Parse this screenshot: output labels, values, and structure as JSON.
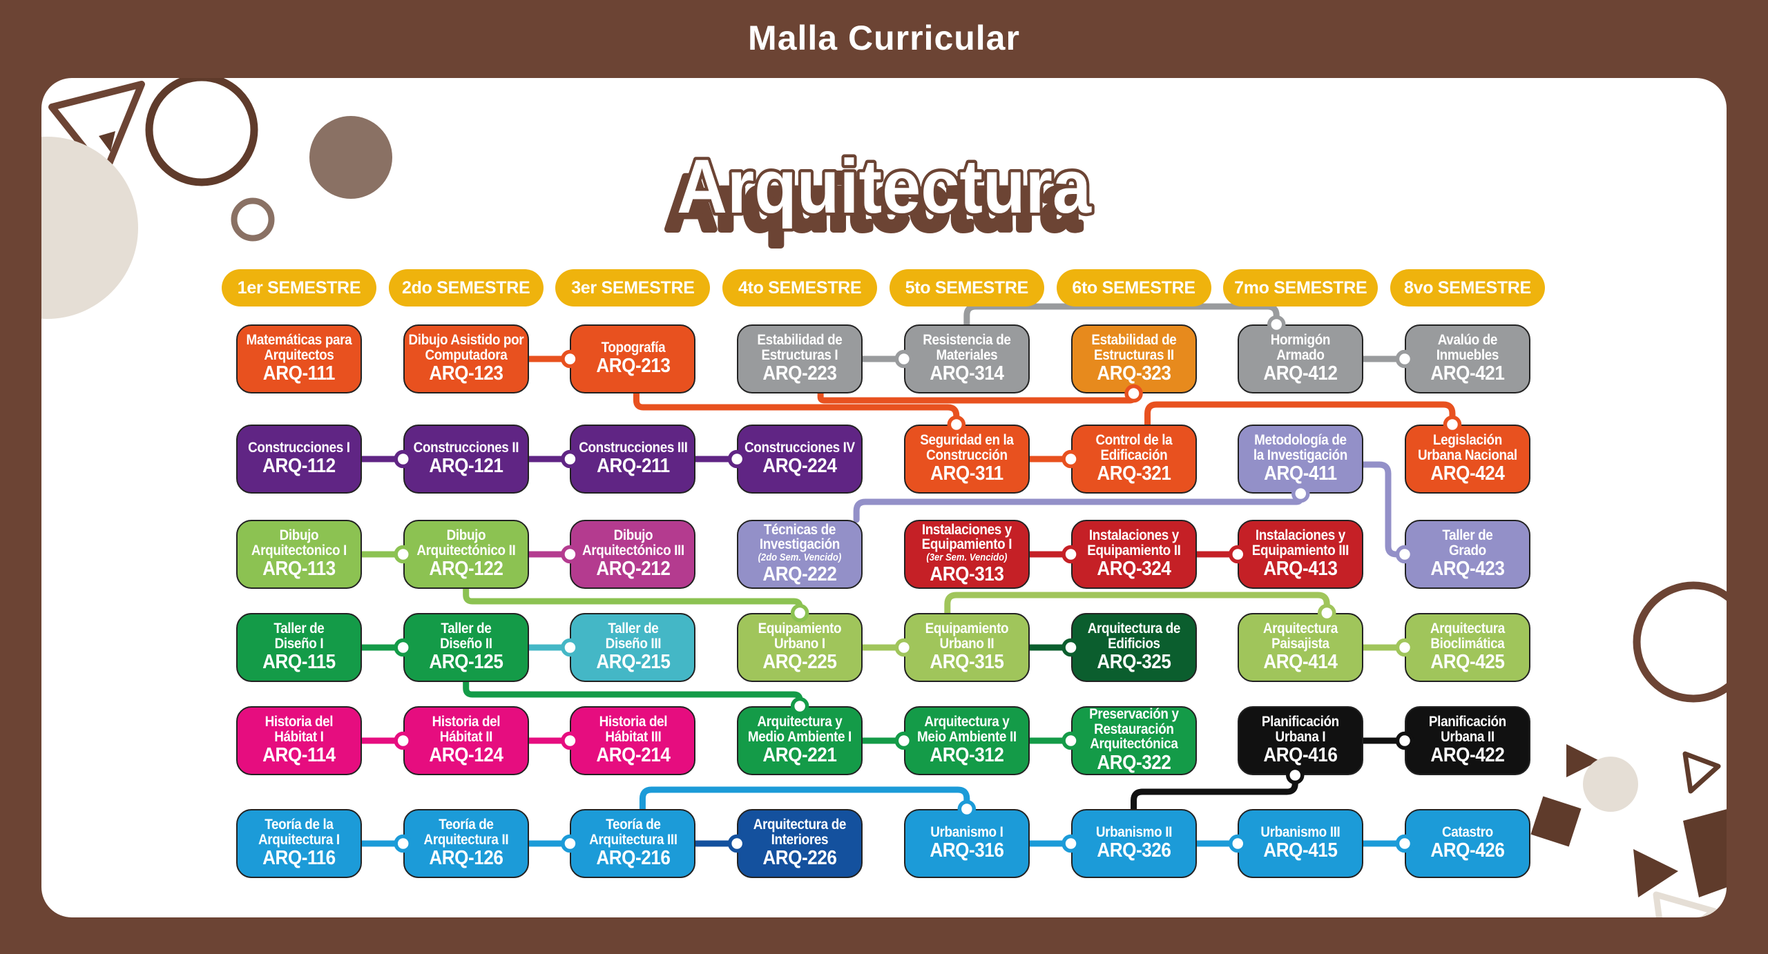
{
  "header": {
    "title": "Malla Curricular"
  },
  "program": {
    "title": "Arquitectura"
  },
  "palette": {
    "background": "#6C4434",
    "panel": "#FFFFFF",
    "pill": "#EFB30D",
    "orange": "#E8511F",
    "amber": "#E78A1D",
    "gray": "#999B9D",
    "purple": "#602584",
    "lavender": "#9390C8",
    "lightgreen": "#8CC252",
    "limegreen": "#A0C55B",
    "magenta": "#B43B8F",
    "red": "#C52026",
    "green": "#149B48",
    "teal": "#44B7C6",
    "darkgreen": "#0B5E2E",
    "pink": "#E60D7F",
    "black": "#111111",
    "blue": "#1C9BD8",
    "darkblue": "#14519E",
    "deco_brown": "#8A7164",
    "deco_dark": "#5F3B2B",
    "deco_beige": "#E5DED5",
    "title_brown": "#6C4434"
  },
  "semesters": [
    "1er SEMESTRE",
    "2do SEMESTRE",
    "3er SEMESTRE",
    "4to SEMESTRE",
    "5to SEMESTRE",
    "6to SEMESTRE",
    "7mo SEMESTRE",
    "8vo SEMESTRE"
  ],
  "courses": [
    {
      "code": "ARQ-111",
      "name": "Matemáticas para\nArquitectos",
      "semester": 1,
      "row": 1,
      "color": "orange"
    },
    {
      "code": "ARQ-123",
      "name": "Dibujo Asistido por\nComputadora",
      "semester": 2,
      "row": 1,
      "color": "orange"
    },
    {
      "code": "ARQ-213",
      "name": "Topografía",
      "semester": 3,
      "row": 1,
      "color": "orange"
    },
    {
      "code": "ARQ-223",
      "name": "Estabilidad de\nEstructuras I",
      "semester": 4,
      "row": 1,
      "color": "gray"
    },
    {
      "code": "ARQ-314",
      "name": "Resistencia de\nMateriales",
      "semester": 5,
      "row": 1,
      "color": "gray"
    },
    {
      "code": "ARQ-323",
      "name": "Estabilidad de\nEstructuras II",
      "semester": 6,
      "row": 1,
      "color": "amber"
    },
    {
      "code": "ARQ-412",
      "name": "Hormigón\nArmado",
      "semester": 7,
      "row": 1,
      "color": "gray"
    },
    {
      "code": "ARQ-421",
      "name": "Avalúo de\nInmuebles",
      "semester": 8,
      "row": 1,
      "color": "gray"
    },
    {
      "code": "ARQ-112",
      "name": "Construcciones I",
      "semester": 1,
      "row": 2,
      "color": "purple"
    },
    {
      "code": "ARQ-121",
      "name": "Construcciones II",
      "semester": 2,
      "row": 2,
      "color": "purple"
    },
    {
      "code": "ARQ-211",
      "name": "Construcciones III",
      "semester": 3,
      "row": 2,
      "color": "purple"
    },
    {
      "code": "ARQ-224",
      "name": "Construcciones IV",
      "semester": 4,
      "row": 2,
      "color": "purple"
    },
    {
      "code": "ARQ-311",
      "name": "Seguridad en la\nConstrucción",
      "semester": 5,
      "row": 2,
      "color": "orange"
    },
    {
      "code": "ARQ-321",
      "name": "Control de la\nEdificación",
      "semester": 6,
      "row": 2,
      "color": "orange"
    },
    {
      "code": "ARQ-411",
      "name": "Metodología de\nla Investigación",
      "semester": 7,
      "row": 2,
      "color": "lavender"
    },
    {
      "code": "ARQ-424",
      "name": "Legislación\nUrbana Nacional",
      "semester": 8,
      "row": 2,
      "color": "orange"
    },
    {
      "code": "ARQ-113",
      "name": "Dibujo\nArquitectonico I",
      "semester": 1,
      "row": 3,
      "color": "lightgreen"
    },
    {
      "code": "ARQ-122",
      "name": "Dibujo\nArquitectónico II",
      "semester": 2,
      "row": 3,
      "color": "lightgreen"
    },
    {
      "code": "ARQ-212",
      "name": "Dibujo\nArquitectónico III",
      "semester": 3,
      "row": 3,
      "color": "magenta"
    },
    {
      "code": "ARQ-222",
      "name": "Técnicas de\nInvestigación",
      "note": "(2do Sem. Vencido)",
      "semester": 4,
      "row": 3,
      "color": "lavender"
    },
    {
      "code": "ARQ-313",
      "name": "Instalaciones y\nEquipamiento I",
      "note": "(3er Sem. Vencido)",
      "semester": 5,
      "row": 3,
      "color": "red"
    },
    {
      "code": "ARQ-324",
      "name": "Instalaciones y\nEquipamiento II",
      "semester": 6,
      "row": 3,
      "color": "red"
    },
    {
      "code": "ARQ-413",
      "name": "Instalaciones y\nEquipamiento III",
      "semester": 7,
      "row": 3,
      "color": "red"
    },
    {
      "code": "ARQ-423",
      "name": "Taller de\nGrado",
      "semester": 8,
      "row": 3,
      "color": "lavender"
    },
    {
      "code": "ARQ-115",
      "name": "Taller de\nDiseño I",
      "semester": 1,
      "row": 4,
      "color": "green"
    },
    {
      "code": "ARQ-125",
      "name": "Taller de\nDiseño II",
      "semester": 2,
      "row": 4,
      "color": "green"
    },
    {
      "code": "ARQ-215",
      "name": "Taller de\nDiseño III",
      "semester": 3,
      "row": 4,
      "color": "teal"
    },
    {
      "code": "ARQ-225",
      "name": "Equipamiento\nUrbano I",
      "semester": 4,
      "row": 4,
      "color": "limegreen"
    },
    {
      "code": "ARQ-315",
      "name": "Equipamiento\nUrbano II",
      "semester": 5,
      "row": 4,
      "color": "limegreen"
    },
    {
      "code": "ARQ-325",
      "name": "Arquitectura de\nEdificios",
      "semester": 6,
      "row": 4,
      "color": "darkgreen"
    },
    {
      "code": "ARQ-414",
      "name": "Arquitectura\nPaisajista",
      "semester": 7,
      "row": 4,
      "color": "limegreen"
    },
    {
      "code": "ARQ-425",
      "name": "Arquitectura\nBioclimática",
      "semester": 8,
      "row": 4,
      "color": "limegreen"
    },
    {
      "code": "ARQ-114",
      "name": "Historia del\nHábitat I",
      "semester": 1,
      "row": 5,
      "color": "pink"
    },
    {
      "code": "ARQ-124",
      "name": "Historia del\nHábitat II",
      "semester": 2,
      "row": 5,
      "color": "pink"
    },
    {
      "code": "ARQ-214",
      "name": "Historia del\nHábitat III",
      "semester": 3,
      "row": 5,
      "color": "pink"
    },
    {
      "code": "ARQ-221",
      "name": "Arquitectura y\nMedio Ambiente I",
      "semester": 4,
      "row": 5,
      "color": "green"
    },
    {
      "code": "ARQ-312",
      "name": "Arquitectura y\nMeio Ambiente II",
      "semester": 5,
      "row": 5,
      "color": "green"
    },
    {
      "code": "ARQ-322",
      "name": "Preservación y\nRestauración\nArquitectónica",
      "semester": 6,
      "row": 5,
      "color": "green"
    },
    {
      "code": "ARQ-416",
      "name": "Planificación\nUrbana I",
      "semester": 7,
      "row": 5,
      "color": "black"
    },
    {
      "code": "ARQ-422",
      "name": "Planificación\nUrbana II",
      "semester": 8,
      "row": 5,
      "color": "black"
    },
    {
      "code": "ARQ-116",
      "name": "Teoría de la\nArquitectura I",
      "semester": 1,
      "row": 6,
      "color": "blue"
    },
    {
      "code": "ARQ-126",
      "name": "Teoría de\nArquitectura II",
      "semester": 2,
      "row": 6,
      "color": "blue"
    },
    {
      "code": "ARQ-216",
      "name": "Teoría de\nArquitectura III",
      "semester": 3,
      "row": 6,
      "color": "blue"
    },
    {
      "code": "ARQ-226",
      "name": "Arquitectura de\nInteriores",
      "semester": 4,
      "row": 6,
      "color": "darkblue"
    },
    {
      "code": "ARQ-316",
      "name": "Urbanismo I",
      "semester": 5,
      "row": 6,
      "color": "blue"
    },
    {
      "code": "ARQ-326",
      "name": "Urbanismo II",
      "semester": 6,
      "row": 6,
      "color": "blue"
    },
    {
      "code": "ARQ-415",
      "name": "Urbanismo III",
      "semester": 7,
      "row": 6,
      "color": "blue"
    },
    {
      "code": "ARQ-426",
      "name": "Catastro",
      "semester": 8,
      "row": 6,
      "color": "blue"
    }
  ],
  "prerequisites": [
    {
      "from": "ARQ-123",
      "to": "ARQ-213",
      "color": "orange",
      "route": "h"
    },
    {
      "from": "ARQ-223",
      "to": "ARQ-314",
      "color": "gray",
      "route": "h"
    },
    {
      "from": "ARQ-412",
      "to": "ARQ-421",
      "color": "gray",
      "route": "h"
    },
    {
      "from": "ARQ-112",
      "to": "ARQ-121",
      "color": "purple",
      "route": "h"
    },
    {
      "from": "ARQ-121",
      "to": "ARQ-211",
      "color": "purple",
      "route": "h"
    },
    {
      "from": "ARQ-211",
      "to": "ARQ-224",
      "color": "purple",
      "route": "h"
    },
    {
      "from": "ARQ-311",
      "to": "ARQ-321",
      "color": "orange",
      "route": "h"
    },
    {
      "from": "ARQ-113",
      "to": "ARQ-122",
      "color": "lightgreen",
      "route": "h"
    },
    {
      "from": "ARQ-122",
      "to": "ARQ-212",
      "color": "magenta",
      "route": "h"
    },
    {
      "from": "ARQ-313",
      "to": "ARQ-324",
      "color": "red",
      "route": "h"
    },
    {
      "from": "ARQ-324",
      "to": "ARQ-413",
      "color": "red",
      "route": "h"
    },
    {
      "from": "ARQ-115",
      "to": "ARQ-125",
      "color": "green",
      "route": "h"
    },
    {
      "from": "ARQ-125",
      "to": "ARQ-215",
      "color": "teal",
      "route": "h"
    },
    {
      "from": "ARQ-225",
      "to": "ARQ-315",
      "color": "limegreen",
      "route": "h"
    },
    {
      "from": "ARQ-315",
      "to": "ARQ-325",
      "color": "darkgreen",
      "route": "h"
    },
    {
      "from": "ARQ-414",
      "to": "ARQ-425",
      "color": "limegreen",
      "route": "h"
    },
    {
      "from": "ARQ-114",
      "to": "ARQ-124",
      "color": "pink",
      "route": "h"
    },
    {
      "from": "ARQ-124",
      "to": "ARQ-214",
      "color": "pink",
      "route": "h"
    },
    {
      "from": "ARQ-221",
      "to": "ARQ-312",
      "color": "green",
      "route": "h"
    },
    {
      "from": "ARQ-312",
      "to": "ARQ-322",
      "color": "green",
      "route": "h"
    },
    {
      "from": "ARQ-416",
      "to": "ARQ-422",
      "color": "black",
      "route": "h"
    },
    {
      "from": "ARQ-116",
      "to": "ARQ-126",
      "color": "blue",
      "route": "h"
    },
    {
      "from": "ARQ-126",
      "to": "ARQ-216",
      "color": "blue",
      "route": "h"
    },
    {
      "from": "ARQ-216",
      "to": "ARQ-226",
      "color": "darkblue",
      "route": "h"
    },
    {
      "from": "ARQ-316",
      "to": "ARQ-326",
      "color": "blue",
      "route": "h"
    },
    {
      "from": "ARQ-326",
      "to": "ARQ-415",
      "color": "blue",
      "route": "h"
    },
    {
      "from": "ARQ-415",
      "to": "ARQ-426",
      "color": "blue",
      "route": "h"
    },
    {
      "from": "ARQ-213",
      "to": "ARQ-311",
      "color": "orange",
      "route": "bt",
      "lane": 590,
      "sdx": 5,
      "ddx": -15
    },
    {
      "from": "ARQ-223",
      "to": "ARQ-323",
      "color": "orange",
      "route": "bb",
      "lane": 580,
      "sdx": 30,
      "ddx": 0
    },
    {
      "from": "ARQ-314",
      "to": "ARQ-412",
      "color": "gray",
      "route": "tt",
      "lane": 444,
      "sdx": 0,
      "ddx": -35
    },
    {
      "from": "ARQ-321",
      "to": "ARQ-424",
      "color": "orange",
      "route": "tt",
      "lane": 586,
      "sdx": 20,
      "ddx": -22
    },
    {
      "from": "ARQ-222",
      "to": "ARQ-411",
      "color": "lavender",
      "route": "tb",
      "lane": 727,
      "sdx": 82,
      "ddx": 0
    },
    {
      "from": "ARQ-411",
      "to": "ARQ-423",
      "color": "lavender",
      "route": "rdl",
      "midx": 2010,
      "sdy": 8
    },
    {
      "from": "ARQ-122",
      "to": "ARQ-225",
      "color": "lightgreen",
      "route": "bt",
      "lane": 871,
      "sdx": 0,
      "ddx": 0
    },
    {
      "from": "ARQ-315",
      "to": "ARQ-414",
      "color": "limegreen",
      "route": "tt",
      "lane": 862,
      "sdx": -28,
      "ddx": 38
    },
    {
      "from": "ARQ-125",
      "to": "ARQ-221",
      "color": "green",
      "route": "bt",
      "lane": 1006,
      "sdx": 0,
      "ddx": 0
    },
    {
      "from": "ARQ-216",
      "to": "ARQ-316",
      "color": "blue",
      "route": "tt",
      "lane": 1144,
      "sdx": 14,
      "ddx": 0
    },
    {
      "from": "ARQ-326",
      "to": "ARQ-416",
      "color": "black",
      "route": "tb",
      "lane": 1147,
      "sdx": 0,
      "ddx": -8
    }
  ]
}
